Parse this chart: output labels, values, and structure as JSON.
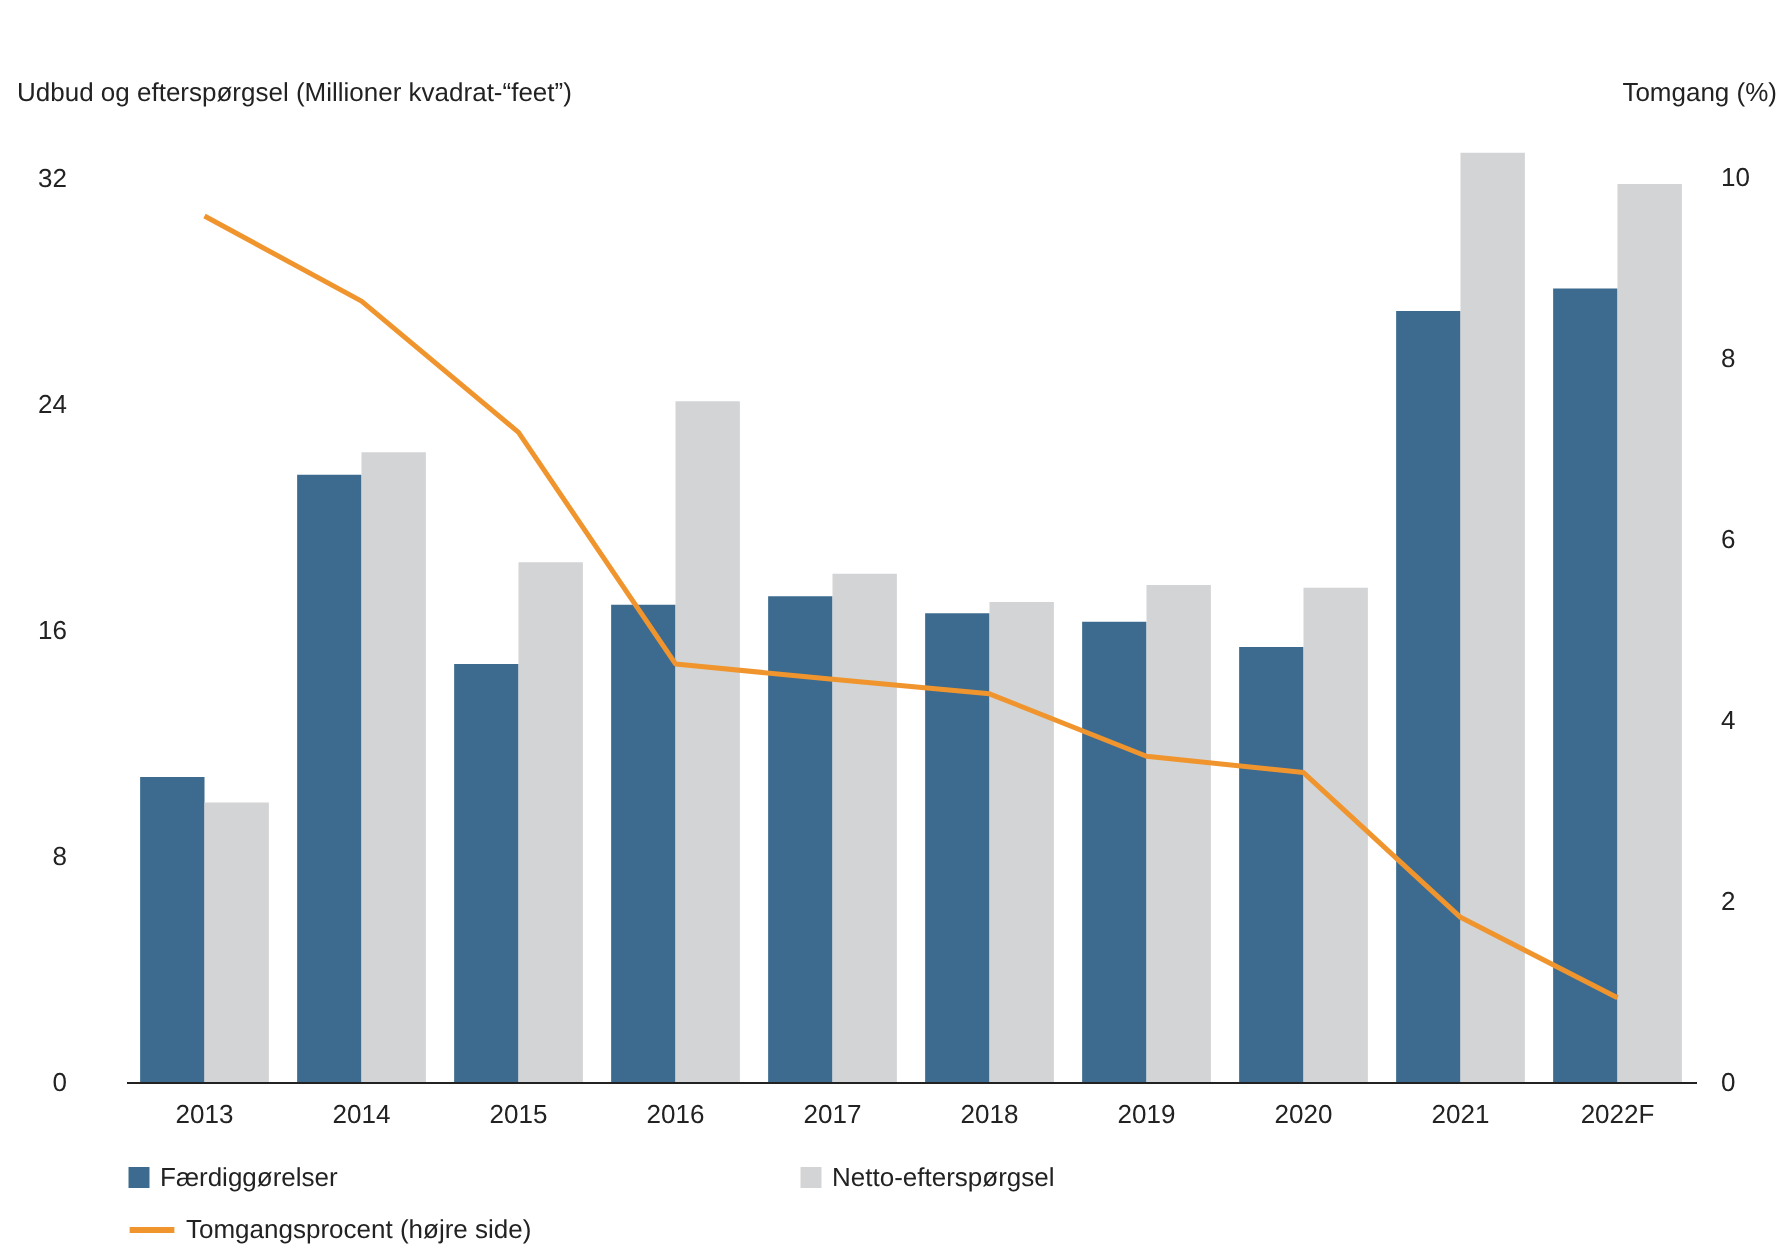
{
  "chart_data": {
    "type": "bar",
    "ylabel": "Udbud og efterspørgsel (Millioner kvadrat-“feet”)",
    "y2label": "Tomgang (%)",
    "categories": [
      "2013",
      "2014",
      "2015",
      "2016",
      "2017",
      "2018",
      "2019",
      "2020",
      "2021",
      "2022F"
    ],
    "series": [
      {
        "name": "Færdiggørelser",
        "color": "#3d6b8f",
        "values": [
          10.8,
          21.5,
          14.8,
          16.9,
          17.2,
          16.6,
          16.3,
          15.4,
          27.3,
          28.1
        ]
      },
      {
        "name": "Netto-efterspørgsel",
        "color": "#d3d4d6",
        "values": [
          9.9,
          22.3,
          18.4,
          24.1,
          18.0,
          17.0,
          17.6,
          17.5,
          32.9,
          31.8
        ]
      },
      {
        "name": "Tomgangsprocent (højre side)",
        "type": "line",
        "axis": "y2",
        "color": "#f0952e",
        "values": [
          9.57,
          8.63,
          7.18,
          4.62,
          4.45,
          4.29,
          3.6,
          3.42,
          1.82,
          0.93
        ]
      }
    ],
    "ylim": [
      0,
      33
    ],
    "yticks": [
      0,
      8,
      16,
      24,
      32
    ],
    "y2lim": [
      0,
      10.3
    ],
    "y2ticks": [
      0,
      2,
      4,
      6,
      8,
      10
    ],
    "legend": "bottom"
  }
}
